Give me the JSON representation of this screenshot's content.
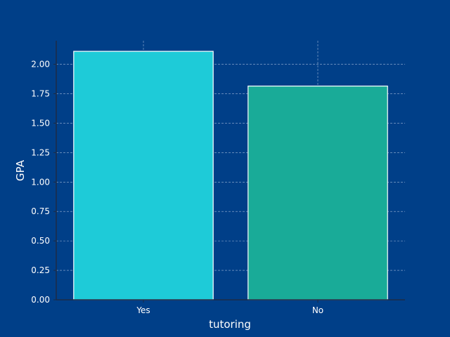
{
  "chart_data": {
    "type": "bar",
    "title": "",
    "xlabel": "tutoring",
    "ylabel": "GPA",
    "categories": [
      "Yes",
      "No"
    ],
    "values": [
      2.11,
      1.815
    ],
    "ylim": [
      0,
      2.2
    ],
    "yticks": [
      "0.00",
      "0.25",
      "0.50",
      "0.75",
      "1.00",
      "1.25",
      "1.50",
      "1.75",
      "2.00"
    ],
    "grid": true,
    "colors": {
      "background": "#003f88",
      "bars": [
        "#1ecbd8",
        "#19ab98"
      ],
      "bar_edge": "#ffffff",
      "grid": "#9fb6d6",
      "axis": "#1d2b45"
    }
  }
}
